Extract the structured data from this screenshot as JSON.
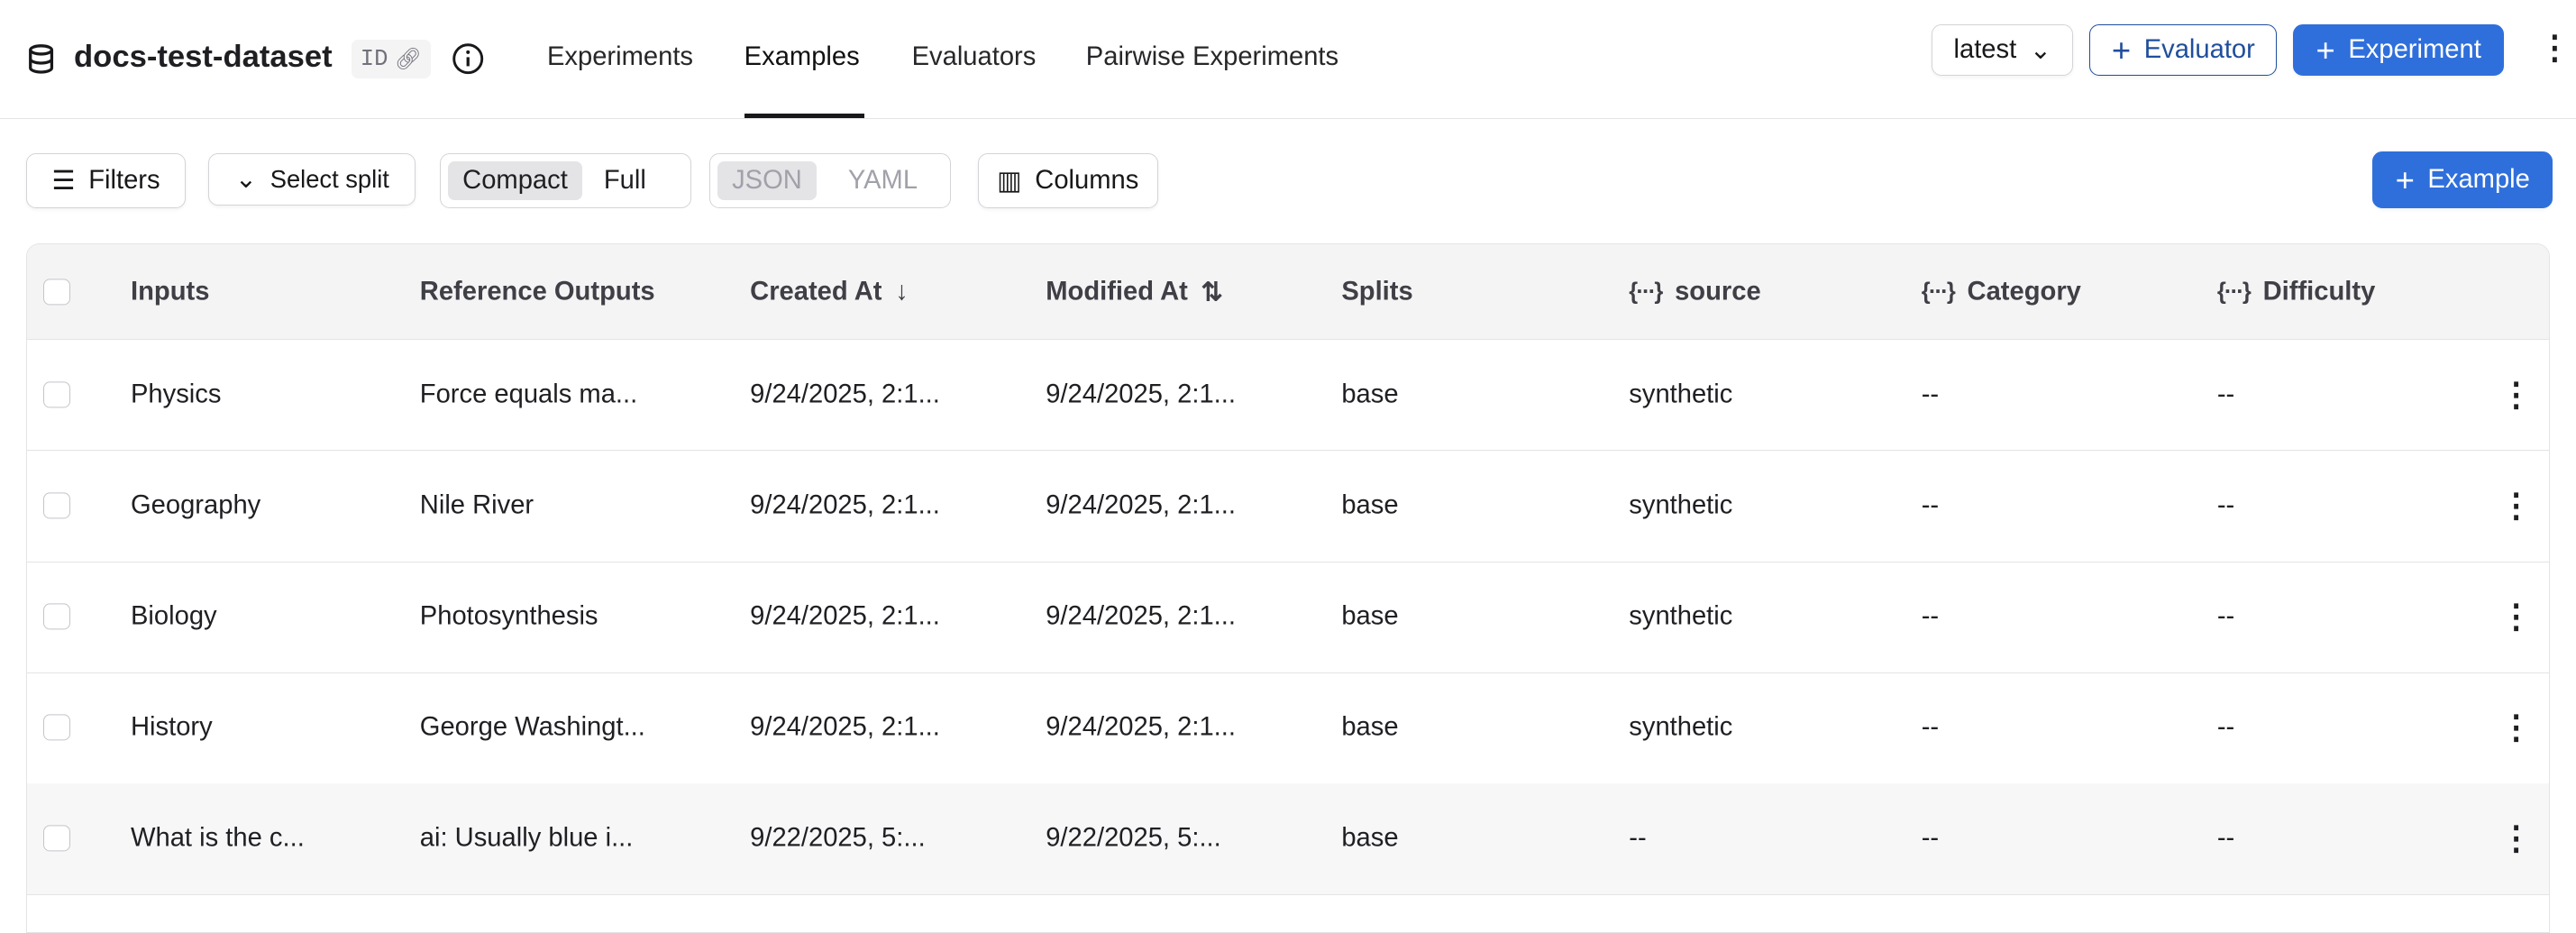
{
  "header": {
    "title": "docs-test-dataset",
    "id_badge": "ID",
    "tabs": [
      {
        "label": "Experiments",
        "active": false
      },
      {
        "label": "Examples",
        "active": true
      },
      {
        "label": "Evaluators",
        "active": false
      },
      {
        "label": "Pairwise Experiments",
        "active": false
      }
    ],
    "version_select": "latest",
    "evaluator_button": "Evaluator",
    "experiment_button": "Experiment"
  },
  "toolbar": {
    "filters": "Filters",
    "select_split": "Select split",
    "view_modes": [
      "Compact",
      "Full"
    ],
    "view_mode_selected": "Compact",
    "formats": [
      "JSON",
      "YAML"
    ],
    "format_selected": "JSON",
    "columns": "Columns",
    "add_example": "Example"
  },
  "colors": {
    "accent": "#2f6fdb",
    "outline": "#1f4e9c"
  },
  "table": {
    "columns": [
      "Inputs",
      "Reference Outputs",
      "Created At",
      "Modified At",
      "Splits",
      "source",
      "Category",
      "Difficulty"
    ],
    "rows": [
      [
        "Physics",
        "Force equals ma...",
        "9/24/2025, 2:1...",
        "9/24/2025, 2:1...",
        "base",
        "synthetic",
        "--",
        "--"
      ],
      [
        "Geography",
        "Nile River",
        "9/24/2025, 2:1...",
        "9/24/2025, 2:1...",
        "base",
        "synthetic",
        "--",
        "--"
      ],
      [
        "Biology",
        "Photosynthesis",
        "9/24/2025, 2:1...",
        "9/24/2025, 2:1...",
        "base",
        "synthetic",
        "--",
        "--"
      ],
      [
        "History",
        "George Washingt...",
        "9/24/2025, 2:1...",
        "9/24/2025, 2:1...",
        "base",
        "synthetic",
        "--",
        "--"
      ],
      [
        "What is the c...",
        "ai: Usually blue i...",
        "9/22/2025, 5:...",
        "9/22/2025, 5:...",
        "base",
        "--",
        "--",
        "--"
      ]
    ]
  }
}
